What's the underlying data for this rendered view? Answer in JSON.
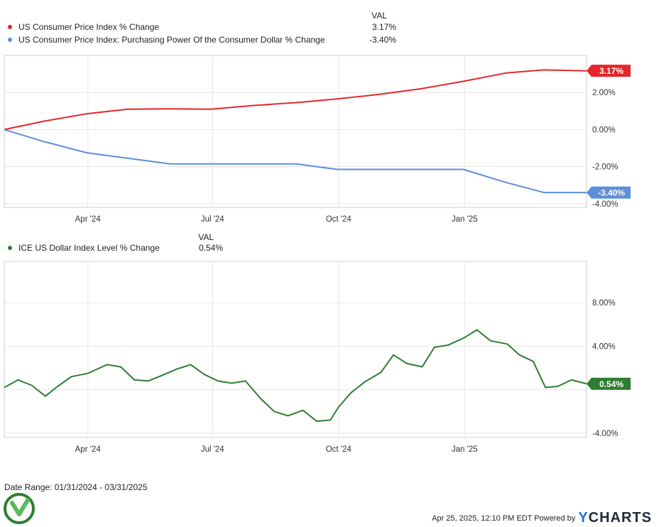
{
  "chart_data": [
    {
      "type": "line",
      "legend_header": "VAL",
      "ylim": [
        -4.2,
        4.0
      ],
      "yticks": [
        {
          "value": 2,
          "label": "2.00%"
        },
        {
          "value": 0,
          "label": "0.00%"
        },
        {
          "value": -2,
          "label": "-2.00%"
        },
        {
          "value": -4,
          "label": "-4.00%"
        }
      ],
      "xticks": [
        {
          "date": "2024-04-01",
          "label": "Apr '24"
        },
        {
          "date": "2024-07-01",
          "label": "Jul '24"
        },
        {
          "date": "2024-10-01",
          "label": "Oct '24"
        },
        {
          "date": "2025-01-01",
          "label": "Jan '25"
        }
      ],
      "xlim": [
        "2024-01-31",
        "2025-03-31"
      ],
      "grid": true,
      "series": [
        {
          "name": "US Consumer Price Index % Change",
          "value_label": "3.17%",
          "color": "#e5262a",
          "x": [
            "2024-01-31",
            "2024-02-29",
            "2024-03-31",
            "2024-04-30",
            "2024-05-31",
            "2024-06-30",
            "2024-07-31",
            "2024-08-31",
            "2024-09-30",
            "2024-10-31",
            "2024-11-30",
            "2024-12-31",
            "2025-01-31",
            "2025-02-28",
            "2025-03-31"
          ],
          "y": [
            0.0,
            0.45,
            0.85,
            1.1,
            1.12,
            1.1,
            1.3,
            1.45,
            1.65,
            1.9,
            2.2,
            2.6,
            3.05,
            3.22,
            3.17
          ]
        },
        {
          "name": "US Consumer Price Index: Purchasing Power Of the Consumer Dollar % Change",
          "value_label": "-3.40%",
          "color": "#5b8fd9",
          "x": [
            "2024-01-31",
            "2024-02-29",
            "2024-03-31",
            "2024-04-30",
            "2024-05-31",
            "2024-06-30",
            "2024-07-31",
            "2024-08-31",
            "2024-09-30",
            "2024-10-31",
            "2024-11-30",
            "2024-12-31",
            "2025-01-31",
            "2025-02-28",
            "2025-03-31"
          ],
          "y": [
            0.0,
            -0.65,
            -1.25,
            -1.55,
            -1.85,
            -1.85,
            -1.85,
            -1.85,
            -2.15,
            -2.15,
            -2.15,
            -2.15,
            -2.85,
            -3.4,
            -3.4
          ]
        }
      ]
    },
    {
      "type": "line",
      "legend_header": "VAL",
      "ylim": [
        -4.4,
        11.8
      ],
      "yticks": [
        {
          "value": 8,
          "label": "8.00%"
        },
        {
          "value": 4,
          "label": "4.00%"
        },
        {
          "value": 0,
          "label": ""
        },
        {
          "value": -4,
          "label": "-4.00%"
        }
      ],
      "xticks": [
        {
          "date": "2024-04-01",
          "label": "Apr '24"
        },
        {
          "date": "2024-07-01",
          "label": "Jul '24"
        },
        {
          "date": "2024-10-01",
          "label": "Oct '24"
        },
        {
          "date": "2025-01-01",
          "label": "Jan '25"
        }
      ],
      "xlim": [
        "2024-01-31",
        "2025-03-31"
      ],
      "grid": true,
      "series": [
        {
          "name": "ICE US Dollar Index Level % Change",
          "value_label": "0.54%",
          "color": "#2e7d32",
          "x": [
            "2024-01-31",
            "2024-02-10",
            "2024-02-20",
            "2024-03-01",
            "2024-03-10",
            "2024-03-20",
            "2024-04-01",
            "2024-04-15",
            "2024-04-25",
            "2024-05-05",
            "2024-05-15",
            "2024-05-25",
            "2024-06-05",
            "2024-06-15",
            "2024-06-25",
            "2024-07-05",
            "2024-07-15",
            "2024-07-25",
            "2024-08-05",
            "2024-08-15",
            "2024-08-25",
            "2024-09-05",
            "2024-09-15",
            "2024-09-25",
            "2024-10-01",
            "2024-10-10",
            "2024-10-20",
            "2024-11-01",
            "2024-11-10",
            "2024-11-20",
            "2024-12-01",
            "2024-12-10",
            "2024-12-20",
            "2025-01-01",
            "2025-01-10",
            "2025-01-20",
            "2025-02-01",
            "2025-02-10",
            "2025-02-20",
            "2025-03-01",
            "2025-03-10",
            "2025-03-20",
            "2025-03-31"
          ],
          "y": [
            0.2,
            0.9,
            0.4,
            -0.6,
            0.3,
            1.2,
            1.5,
            2.3,
            2.1,
            0.9,
            0.8,
            1.3,
            1.9,
            2.3,
            1.4,
            0.8,
            0.6,
            0.8,
            -0.8,
            -2.0,
            -2.4,
            -1.9,
            -2.9,
            -2.8,
            -1.6,
            -0.3,
            0.7,
            1.6,
            3.2,
            2.4,
            2.1,
            3.9,
            4.1,
            4.8,
            5.5,
            4.5,
            4.2,
            3.2,
            2.6,
            0.2,
            0.3,
            0.9,
            0.54
          ]
        }
      ]
    }
  ],
  "footer": {
    "date_range": "Date Range: 01/31/2024 - 03/31/2025",
    "timestamp": "Apr 25, 2025, 12:10 PM EDT Powered by",
    "brand_y": "Y",
    "brand_rest": "CHARTS"
  }
}
